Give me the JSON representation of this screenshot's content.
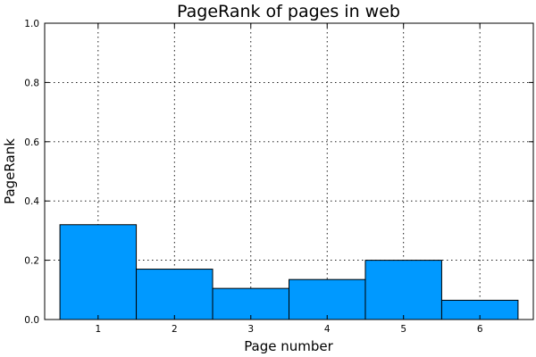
{
  "chart_data": {
    "type": "bar",
    "title": "PageRank of pages in web",
    "xlabel": "Page number",
    "ylabel": "PageRank",
    "categories": [
      "1",
      "2",
      "3",
      "4",
      "5",
      "6"
    ],
    "values": [
      0.32,
      0.17,
      0.105,
      0.135,
      0.2,
      0.065
    ],
    "ylim": [
      0,
      1.0
    ],
    "yticks": [
      "0.0",
      "0.2",
      "0.4",
      "0.6",
      "0.8",
      "1.0"
    ],
    "grid": true,
    "bar_color": "#0099ff"
  }
}
